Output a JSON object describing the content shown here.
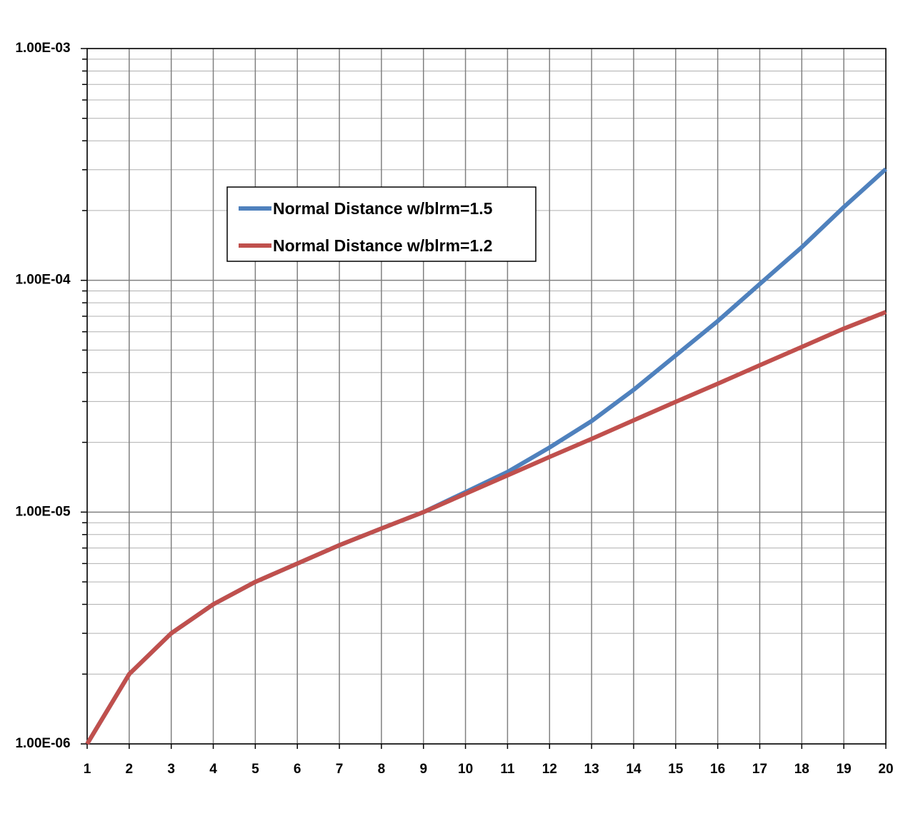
{
  "chart_data": {
    "type": "line",
    "x": [
      1,
      2,
      3,
      4,
      5,
      6,
      7,
      8,
      9,
      10,
      11,
      12,
      13,
      14,
      15,
      16,
      17,
      18,
      19,
      20
    ],
    "series": [
      {
        "name": "Normal Distance w/blrm=1.5",
        "color": "#4f81bd",
        "values": [
          1e-06,
          2e-06,
          3e-06,
          4e-06,
          5e-06,
          6e-06,
          7.2e-06,
          8.5e-06,
          1e-05,
          1.22e-05,
          1.49e-05,
          1.9e-05,
          2.47e-05,
          3.37e-05,
          4.74e-05,
          6.67e-05,
          9.64e-05,
          0.000139,
          0.000207,
          0.000302
        ]
      },
      {
        "name": "Normal Distance w/blrm=1.2",
        "color": "#c0504d",
        "values": [
          1e-06,
          2e-06,
          3e-06,
          4e-06,
          5e-06,
          6e-06,
          7.2e-06,
          8.5e-06,
          1e-05,
          1.2e-05,
          1.44e-05,
          1.73e-05,
          2.07e-05,
          2.49e-05,
          2.99e-05,
          3.58e-05,
          4.3e-05,
          5.16e-05,
          6.19e-05,
          7.3e-05
        ]
      }
    ],
    "xlim": [
      1,
      20
    ],
    "xticks": [
      1,
      2,
      3,
      4,
      5,
      6,
      7,
      8,
      9,
      10,
      11,
      12,
      13,
      14,
      15,
      16,
      17,
      18,
      19,
      20
    ],
    "ylim": [
      1e-06,
      0.001
    ],
    "ylog": true,
    "yticks": [
      {
        "value": 1e-06,
        "label": "1.00E-06"
      },
      {
        "value": 1e-05,
        "label": "1.00E-05"
      },
      {
        "value": 0.0001,
        "label": "1.00E-04"
      },
      {
        "value": 0.001,
        "label": "1.00E-03"
      }
    ],
    "yminorticks": [
      2e-06,
      3e-06,
      4e-06,
      5e-06,
      6e-06,
      7e-06,
      8e-06,
      9e-06,
      2e-05,
      3e-05,
      4e-05,
      5e-05,
      6e-05,
      7e-05,
      8e-05,
      9e-05,
      0.0002,
      0.0003,
      0.0004,
      0.0005,
      0.0006,
      0.0007,
      0.0008,
      0.0009
    ],
    "grid": true,
    "legend": "upper-left"
  }
}
